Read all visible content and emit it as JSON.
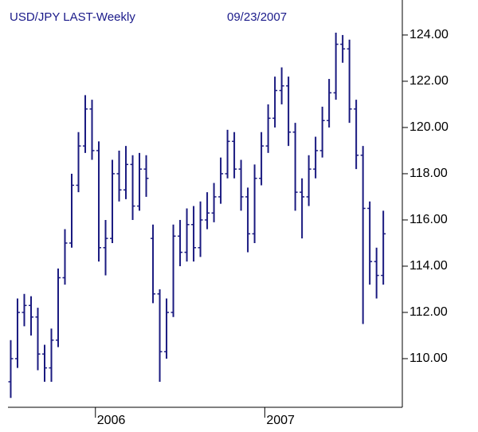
{
  "chart_data": {
    "type": "ohlc",
    "title": "USD/JPY LAST-Weekly",
    "subtitle": "09/23/2007",
    "color": "#1a1a80",
    "x": [
      2005.5,
      2005.54,
      2005.58,
      2005.62,
      2005.66,
      2005.7,
      2005.74,
      2005.78,
      2005.82,
      2005.86,
      2005.9,
      2005.94,
      2005.98,
      2006.02,
      2006.06,
      2006.1,
      2006.14,
      2006.18,
      2006.22,
      2006.26,
      2006.3,
      2006.34,
      2006.38,
      2006.42,
      2006.46,
      2006.5,
      2006.54,
      2006.58,
      2006.62,
      2006.66,
      2006.7,
      2006.74,
      2006.78,
      2006.82,
      2006.86,
      2006.9,
      2006.94,
      2006.98,
      2007.02,
      2007.06,
      2007.1,
      2007.14,
      2007.18,
      2007.22,
      2007.26,
      2007.3,
      2007.34,
      2007.38,
      2007.42,
      2007.46,
      2007.5,
      2007.54,
      2007.58,
      2007.62,
      2007.66,
      2007.7
    ],
    "open": [
      109.0,
      110.0,
      112.0,
      112.3,
      111.8,
      110.2,
      109.6,
      110.8,
      113.5,
      115.0,
      117.5,
      119.2,
      120.8,
      119.0,
      114.8,
      115.2,
      118.0,
      117.3,
      118.4,
      116.6,
      118.2,
      115.2,
      112.8,
      110.3,
      112.0,
      115.3,
      114.6,
      115.8,
      114.8,
      116.0,
      116.3,
      117.0,
      118.0,
      119.4,
      118.2,
      117.0,
      115.4,
      117.8,
      119.2,
      120.4,
      121.6,
      121.8,
      119.8,
      117.2,
      117.0,
      118.2,
      119.0,
      120.3,
      121.5,
      123.6,
      123.4,
      120.8,
      118.8,
      116.5,
      114.2,
      113.6
    ],
    "high": [
      110.8,
      112.6,
      112.8,
      112.7,
      112.2,
      110.6,
      111.3,
      113.9,
      115.6,
      118.0,
      119.8,
      121.4,
      121.2,
      119.4,
      116.0,
      118.6,
      119.0,
      119.2,
      118.8,
      118.9,
      118.8,
      115.8,
      113.0,
      112.6,
      115.8,
      116.0,
      116.5,
      116.6,
      116.8,
      117.2,
      117.6,
      118.7,
      119.9,
      119.8,
      118.6,
      117.4,
      118.4,
      119.8,
      121.0,
      122.2,
      122.6,
      122.2,
      120.2,
      117.8,
      118.8,
      119.6,
      120.9,
      122.1,
      124.1,
      124.0,
      123.8,
      121.2,
      119.2,
      116.8,
      114.8,
      116.4
    ],
    "low": [
      108.3,
      109.6,
      111.4,
      111.0,
      109.5,
      109.0,
      109.0,
      110.5,
      113.2,
      114.8,
      117.2,
      118.9,
      118.6,
      114.2,
      113.6,
      115.0,
      116.8,
      116.9,
      116.0,
      116.4,
      117.0,
      112.4,
      109.0,
      110.0,
      111.8,
      114.0,
      114.2,
      114.2,
      114.4,
      115.6,
      115.9,
      116.7,
      117.8,
      117.8,
      116.4,
      114.6,
      115.0,
      117.5,
      118.9,
      120.0,
      121.0,
      119.2,
      116.4,
      115.2,
      116.6,
      117.8,
      118.7,
      120.0,
      121.2,
      122.8,
      120.2,
      118.2,
      111.5,
      113.2,
      112.6,
      113.2
    ],
    "close": [
      110.0,
      112.0,
      112.3,
      111.8,
      110.2,
      109.6,
      110.8,
      113.5,
      115.0,
      117.5,
      119.2,
      120.8,
      119.0,
      114.8,
      115.2,
      118.0,
      117.3,
      118.4,
      116.6,
      118.2,
      117.8,
      112.8,
      110.3,
      112.0,
      115.3,
      114.6,
      115.8,
      114.8,
      116.0,
      116.3,
      117.0,
      118.0,
      119.4,
      118.2,
      117.0,
      115.4,
      117.8,
      119.2,
      120.4,
      121.6,
      121.8,
      119.8,
      117.2,
      117.0,
      118.2,
      119.0,
      120.3,
      121.5,
      123.6,
      123.4,
      120.8,
      118.8,
      116.5,
      114.2,
      113.6,
      115.4
    ],
    "xlim": [
      2005.4366,
      2007.8122
    ],
    "xticks": [
      2006,
      2007
    ],
    "ylim": [
      107.93,
      125.17
    ],
    "yticks": [
      {
        "value": 110,
        "label": "110.00"
      },
      {
        "value": 112,
        "label": "112.00"
      },
      {
        "value": 114,
        "label": "114.00"
      },
      {
        "value": 116,
        "label": "116.00"
      },
      {
        "value": 118,
        "label": "118.00"
      },
      {
        "value": 120,
        "label": "120.00"
      },
      {
        "value": 122,
        "label": "122.00"
      },
      {
        "value": 124,
        "label": "124.00"
      }
    ]
  }
}
